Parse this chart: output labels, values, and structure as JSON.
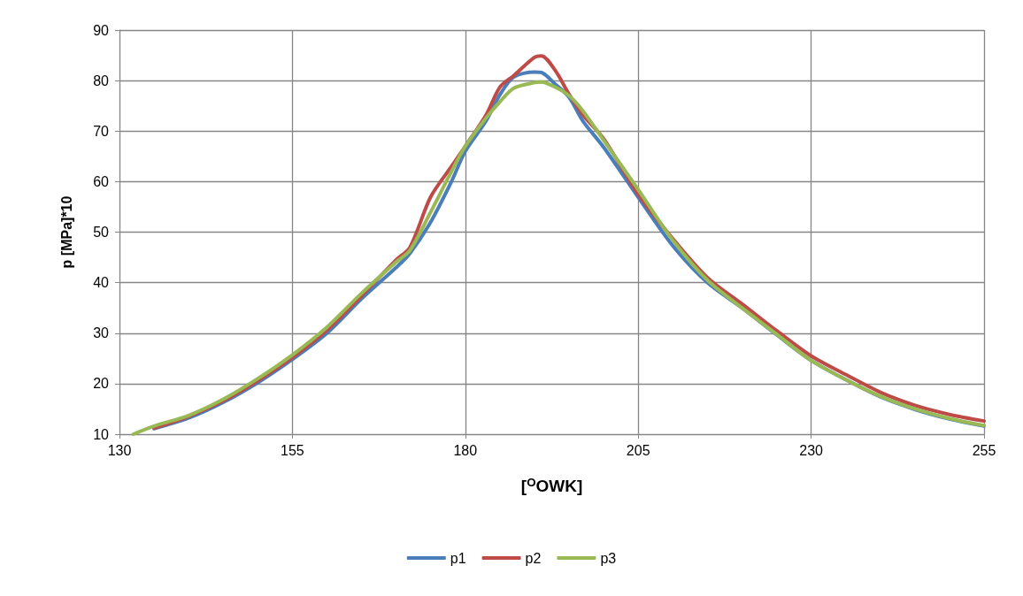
{
  "chart_data": {
    "type": "line",
    "xlabel": "[$^{O}$OWK]",
    "ylabel": "p [MPa]*10",
    "x": [
      132,
      135,
      140,
      145,
      150,
      155,
      160,
      165,
      170,
      172,
      175,
      178,
      180,
      183,
      185,
      187,
      190,
      191,
      193,
      195,
      197,
      200,
      205,
      210,
      215,
      220,
      225,
      230,
      235,
      240,
      245,
      250,
      255
    ],
    "series": [
      {
        "name": "p1",
        "color": "#4a7ebb",
        "values": [
          null,
          11.1,
          13.2,
          16.3,
          20.2,
          24.8,
          30,
          36.8,
          43,
          45.8,
          52,
          60,
          66,
          72,
          77.2,
          80.7,
          81.7,
          81.6,
          79.3,
          76.7,
          72,
          66.8,
          56.9,
          47.3,
          40,
          35,
          29.7,
          24.6,
          20.8,
          17.4,
          14.9,
          13,
          11.6
        ]
      },
      {
        "name": "p2",
        "color": "#be4b48",
        "values": [
          null,
          11.2,
          13.5,
          16.6,
          20.6,
          25.2,
          30.6,
          37.4,
          44.5,
          47,
          57,
          63,
          67,
          73.2,
          78.7,
          81,
          84.6,
          84.9,
          82,
          77.3,
          73.2,
          68.5,
          57.5,
          48.7,
          41,
          35.8,
          30.5,
          25.5,
          21.8,
          18.3,
          15.7,
          13.9,
          12.6
        ]
      },
      {
        "name": "p3",
        "color": "#98b954",
        "values": [
          10,
          11.6,
          13.7,
          16.9,
          21,
          25.7,
          31.2,
          37.9,
          44.1,
          46.4,
          54,
          62,
          67,
          72.6,
          75.8,
          78.5,
          79.6,
          79.7,
          78.7,
          77,
          74,
          68.2,
          58.4,
          48.4,
          40.5,
          35,
          29.8,
          24.6,
          20.8,
          17.5,
          15,
          13.1,
          11.7
        ]
      }
    ],
    "xlim": [
      130,
      255
    ],
    "xticks": [
      130,
      155,
      180,
      205,
      230,
      255
    ],
    "ylim": [
      10,
      90
    ],
    "yticks": [
      10,
      20,
      30,
      40,
      50,
      60,
      70,
      80,
      90
    ],
    "grid": true,
    "legend": "bottom",
    "marker": "none",
    "line_style": "solid"
  }
}
